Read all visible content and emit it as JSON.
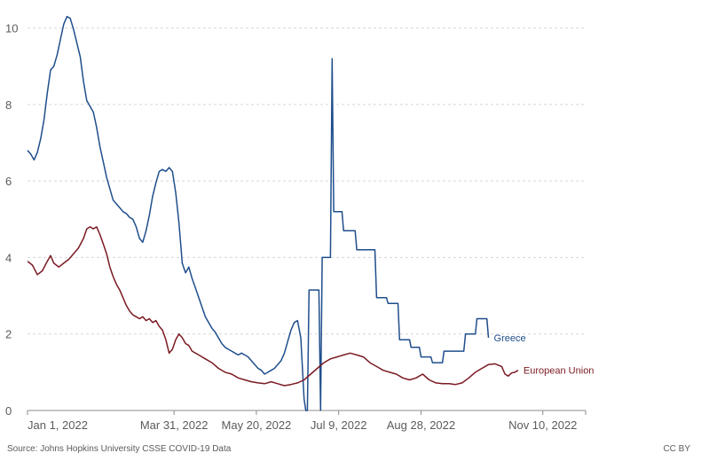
{
  "chart_data": {
    "type": "line",
    "title": "",
    "xlabel": "",
    "ylabel": "",
    "ylim": [
      0,
      10.5
    ],
    "y_ticks": [
      0,
      2,
      4,
      6,
      8,
      10
    ],
    "y_tick_labels": [
      "0",
      "2",
      "4",
      "6",
      "8",
      "10"
    ],
    "x_range_days": [
      0,
      339
    ],
    "x_ticks": [
      {
        "day": 0,
        "label": "Jan 1, 2022"
      },
      {
        "day": 89,
        "label": "Mar 31, 2022"
      },
      {
        "day": 139,
        "label": "May 20, 2022"
      },
      {
        "day": 189,
        "label": "Jul 9, 2022"
      },
      {
        "day": 239,
        "label": "Aug 28, 2022"
      },
      {
        "day": 313,
        "label": "Nov 10, 2022"
      }
    ],
    "grid": true,
    "series": [
      {
        "name": "Greece",
        "color": "#1f4e8c",
        "points": [
          [
            0,
            6.8
          ],
          [
            2,
            6.7
          ],
          [
            4,
            6.55
          ],
          [
            6,
            6.75
          ],
          [
            8,
            7.1
          ],
          [
            10,
            7.6
          ],
          [
            12,
            8.3
          ],
          [
            14,
            8.9
          ],
          [
            16,
            9.0
          ],
          [
            18,
            9.3
          ],
          [
            20,
            9.7
          ],
          [
            22,
            10.1
          ],
          [
            24,
            10.3
          ],
          [
            26,
            10.25
          ],
          [
            28,
            9.95
          ],
          [
            30,
            9.6
          ],
          [
            32,
            9.25
          ],
          [
            34,
            8.6
          ],
          [
            36,
            8.1
          ],
          [
            38,
            7.95
          ],
          [
            40,
            7.8
          ],
          [
            42,
            7.4
          ],
          [
            44,
            6.9
          ],
          [
            46,
            6.5
          ],
          [
            48,
            6.1
          ],
          [
            50,
            5.8
          ],
          [
            52,
            5.5
          ],
          [
            54,
            5.4
          ],
          [
            56,
            5.3
          ],
          [
            58,
            5.2
          ],
          [
            60,
            5.15
          ],
          [
            62,
            5.05
          ],
          [
            64,
            5.0
          ],
          [
            66,
            4.8
          ],
          [
            68,
            4.5
          ],
          [
            70,
            4.4
          ],
          [
            72,
            4.7
          ],
          [
            74,
            5.1
          ],
          [
            76,
            5.6
          ],
          [
            78,
            5.95
          ],
          [
            80,
            6.25
          ],
          [
            82,
            6.3
          ],
          [
            84,
            6.25
          ],
          [
            86,
            6.35
          ],
          [
            88,
            6.25
          ],
          [
            90,
            5.7
          ],
          [
            92,
            4.9
          ],
          [
            94,
            3.85
          ],
          [
            96,
            3.6
          ],
          [
            98,
            3.75
          ],
          [
            100,
            3.45
          ],
          [
            102,
            3.2
          ],
          [
            104,
            2.95
          ],
          [
            106,
            2.7
          ],
          [
            108,
            2.45
          ],
          [
            110,
            2.3
          ],
          [
            112,
            2.15
          ],
          [
            114,
            2.05
          ],
          [
            116,
            1.9
          ],
          [
            118,
            1.75
          ],
          [
            120,
            1.65
          ],
          [
            122,
            1.6
          ],
          [
            124,
            1.55
          ],
          [
            126,
            1.5
          ],
          [
            128,
            1.45
          ],
          [
            130,
            1.5
          ],
          [
            132,
            1.45
          ],
          [
            134,
            1.4
          ],
          [
            136,
            1.3
          ],
          [
            138,
            1.2
          ],
          [
            140,
            1.1
          ],
          [
            142,
            1.05
          ],
          [
            144,
            0.95
          ],
          [
            146,
            1.0
          ],
          [
            148,
            1.05
          ],
          [
            150,
            1.1
          ],
          [
            152,
            1.2
          ],
          [
            154,
            1.3
          ],
          [
            156,
            1.5
          ],
          [
            158,
            1.8
          ],
          [
            160,
            2.1
          ],
          [
            162,
            2.3
          ],
          [
            164,
            2.35
          ],
          [
            166,
            1.9
          ],
          [
            168,
            0.3
          ],
          [
            169,
            0.0
          ],
          [
            170,
            0.0
          ],
          [
            171,
            3.15
          ],
          [
            177,
            3.15
          ],
          [
            178,
            0.0
          ],
          [
            179,
            4.0
          ],
          [
            184,
            4.0
          ],
          [
            185,
            9.2
          ],
          [
            186,
            5.2
          ],
          [
            191,
            5.2
          ],
          [
            192,
            4.7
          ],
          [
            199,
            4.7
          ],
          [
            200,
            4.2
          ],
          [
            211,
            4.2
          ],
          [
            212,
            2.95
          ],
          [
            218,
            2.95
          ],
          [
            219,
            2.8
          ],
          [
            225,
            2.8
          ],
          [
            226,
            1.85
          ],
          [
            232,
            1.85
          ],
          [
            233,
            1.65
          ],
          [
            238,
            1.65
          ],
          [
            239,
            1.4
          ],
          [
            245,
            1.4
          ],
          [
            246,
            1.25
          ],
          [
            252,
            1.25
          ],
          [
            253,
            1.55
          ],
          [
            265,
            1.55
          ],
          [
            266,
            2.0
          ],
          [
            272,
            2.0
          ],
          [
            273,
            2.4
          ],
          [
            279,
            2.4
          ],
          [
            280,
            1.9
          ]
        ]
      },
      {
        "name": "European Union",
        "color": "#7a1a22",
        "points": [
          [
            0,
            3.9
          ],
          [
            3,
            3.8
          ],
          [
            6,
            3.55
          ],
          [
            9,
            3.65
          ],
          [
            12,
            3.9
          ],
          [
            14,
            4.05
          ],
          [
            16,
            3.85
          ],
          [
            19,
            3.75
          ],
          [
            22,
            3.85
          ],
          [
            25,
            3.95
          ],
          [
            28,
            4.1
          ],
          [
            31,
            4.25
          ],
          [
            34,
            4.5
          ],
          [
            36,
            4.75
          ],
          [
            38,
            4.8
          ],
          [
            40,
            4.75
          ],
          [
            42,
            4.8
          ],
          [
            44,
            4.6
          ],
          [
            46,
            4.35
          ],
          [
            48,
            4.1
          ],
          [
            50,
            3.75
          ],
          [
            52,
            3.5
          ],
          [
            54,
            3.3
          ],
          [
            56,
            3.15
          ],
          [
            58,
            2.95
          ],
          [
            60,
            2.75
          ],
          [
            62,
            2.6
          ],
          [
            64,
            2.5
          ],
          [
            66,
            2.45
          ],
          [
            68,
            2.4
          ],
          [
            70,
            2.45
          ],
          [
            72,
            2.35
          ],
          [
            74,
            2.4
          ],
          [
            76,
            2.3
          ],
          [
            78,
            2.35
          ],
          [
            80,
            2.2
          ],
          [
            82,
            2.1
          ],
          [
            84,
            1.85
          ],
          [
            86,
            1.5
          ],
          [
            88,
            1.6
          ],
          [
            90,
            1.85
          ],
          [
            92,
            2.0
          ],
          [
            94,
            1.9
          ],
          [
            96,
            1.75
          ],
          [
            98,
            1.7
          ],
          [
            100,
            1.55
          ],
          [
            104,
            1.45
          ],
          [
            108,
            1.35
          ],
          [
            112,
            1.25
          ],
          [
            116,
            1.1
          ],
          [
            120,
            1.0
          ],
          [
            124,
            0.95
          ],
          [
            128,
            0.85
          ],
          [
            132,
            0.8
          ],
          [
            136,
            0.75
          ],
          [
            140,
            0.72
          ],
          [
            144,
            0.7
          ],
          [
            148,
            0.75
          ],
          [
            152,
            0.7
          ],
          [
            156,
            0.65
          ],
          [
            160,
            0.68
          ],
          [
            164,
            0.72
          ],
          [
            168,
            0.8
          ],
          [
            172,
            0.95
          ],
          [
            176,
            1.1
          ],
          [
            180,
            1.25
          ],
          [
            184,
            1.35
          ],
          [
            188,
            1.4
          ],
          [
            192,
            1.45
          ],
          [
            196,
            1.5
          ],
          [
            200,
            1.45
          ],
          [
            204,
            1.4
          ],
          [
            208,
            1.25
          ],
          [
            212,
            1.15
          ],
          [
            216,
            1.05
          ],
          [
            220,
            1.0
          ],
          [
            224,
            0.95
          ],
          [
            228,
            0.85
          ],
          [
            232,
            0.8
          ],
          [
            236,
            0.85
          ],
          [
            240,
            0.95
          ],
          [
            244,
            0.8
          ],
          [
            248,
            0.72
          ],
          [
            252,
            0.7
          ],
          [
            256,
            0.7
          ],
          [
            260,
            0.68
          ],
          [
            264,
            0.72
          ],
          [
            268,
            0.85
          ],
          [
            272,
            1.0
          ],
          [
            276,
            1.1
          ],
          [
            280,
            1.2
          ],
          [
            284,
            1.22
          ],
          [
            288,
            1.15
          ],
          [
            290,
            0.95
          ],
          [
            292,
            0.9
          ],
          [
            294,
            0.98
          ],
          [
            296,
            1.0
          ],
          [
            298,
            1.05
          ]
        ]
      }
    ]
  },
  "footer": {
    "source": "Source: Johns Hopkins University CSSE COVID-19 Data",
    "license": "CC BY"
  }
}
